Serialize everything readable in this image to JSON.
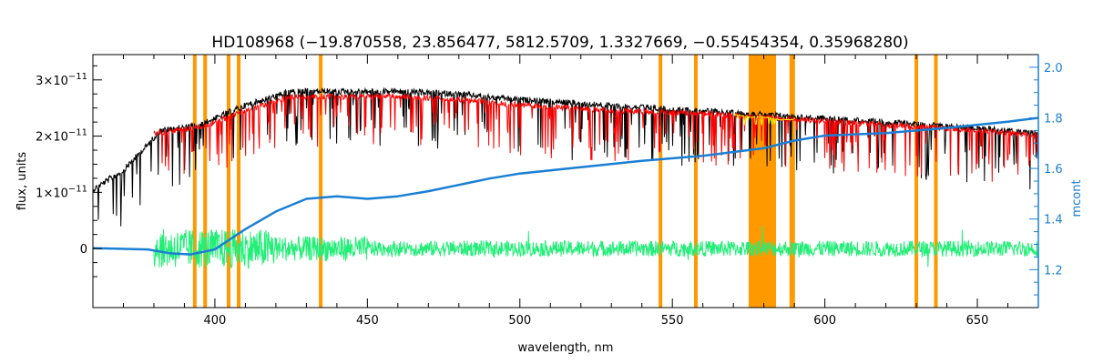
{
  "chart_data": {
    "type": "line",
    "title": "HD108968    (−19.870558, 23.856477, 5812.5709, 1.3327669, −0.55454354, 0.35968280)",
    "xlabel": "wavelength, nm",
    "ylabel": "flux, units",
    "ylabel_right": "mcont",
    "xlim": [
      360,
      670
    ],
    "ylim": [
      -1.05e-11,
      3.45e-11
    ],
    "ylim_right": [
      1.05,
      2.05
    ],
    "x_ticks": [
      400,
      450,
      500,
      550,
      600,
      650
    ],
    "x_tick_labels": [
      "400",
      "450",
      "500",
      "550",
      "600",
      "650"
    ],
    "y_ticks": [
      0,
      1e-11,
      2e-11,
      3e-11
    ],
    "y_tick_labels": [
      {
        "mantissa": "0",
        "exp": ""
      },
      {
        "mantissa": "1×10",
        "exp": "−11"
      },
      {
        "mantissa": "2×10",
        "exp": "−11"
      },
      {
        "mantissa": "3×10",
        "exp": "−11"
      }
    ],
    "y_right_ticks": [
      1.2,
      1.4,
      1.6,
      1.8,
      2.0
    ],
    "y_right_tick_labels": [
      "1.2",
      "1.4",
      "1.6",
      "1.8",
      "2.0"
    ],
    "excluded_lines_nm": [
      393.4,
      396.8,
      404.5,
      407.8,
      434.7,
      546.1,
      557.7,
      589.0,
      589.6,
      630.0,
      636.4
    ],
    "excluded_band_nm": [
      575,
      584
    ],
    "series": [
      {
        "color": "#000000",
        "x": [
          360,
          370,
          378,
          382,
          395,
          410,
          425,
          440,
          460,
          480,
          500,
          530,
          560,
          590,
          620,
          650,
          670
        ],
        "y": [
          1.1e-11,
          1.45e-11,
          1.9e-11,
          2.15e-11,
          2.25e-11,
          2.6e-11,
          2.85e-11,
          2.85e-11,
          2.85e-11,
          2.8e-11,
          2.7e-11,
          2.6e-11,
          2.5e-11,
          2.4e-11,
          2.3e-11,
          2.2e-11,
          2.1e-11
        ]
      },
      {
        "color": "#ff0000",
        "x": [
          380,
          395,
          410,
          425,
          440,
          460,
          480,
          500,
          530,
          560,
          590,
          620,
          650,
          670
        ],
        "y": [
          2.1e-11,
          2.2e-11,
          2.5e-11,
          2.75e-11,
          2.75e-11,
          2.75e-11,
          2.7e-11,
          2.6e-11,
          2.5e-11,
          2.45e-11,
          2.35e-11,
          2.25e-11,
          2.15e-11,
          2.05e-11
        ]
      },
      {
        "color": "#ffff00",
        "x": [
          570,
          575,
          580,
          585,
          590
        ],
        "y": [
          2.4e-11,
          2.35e-11,
          2.35e-11,
          2.3e-11,
          2.3e-11
        ]
      },
      {
        "color": "#22ee77",
        "x": [
          380,
          390,
          400,
          420,
          450,
          500,
          550,
          600,
          650,
          670
        ],
        "y": [
          0,
          0,
          0,
          0,
          0,
          0,
          0,
          0,
          0,
          0
        ]
      },
      {
        "color": "#1a7fd4",
        "axis": "right",
        "x": [
          360,
          378,
          385,
          392,
          400,
          410,
          420,
          430,
          440,
          450,
          460,
          470,
          480,
          490,
          500,
          520,
          540,
          560,
          580,
          590,
          600,
          620,
          640,
          660,
          670
        ],
        "y": [
          1.285,
          1.28,
          1.265,
          1.26,
          1.28,
          1.36,
          1.43,
          1.48,
          1.49,
          1.48,
          1.49,
          1.51,
          1.535,
          1.56,
          1.58,
          1.605,
          1.63,
          1.65,
          1.68,
          1.71,
          1.73,
          1.74,
          1.76,
          1.785,
          1.8
        ]
      }
    ]
  }
}
